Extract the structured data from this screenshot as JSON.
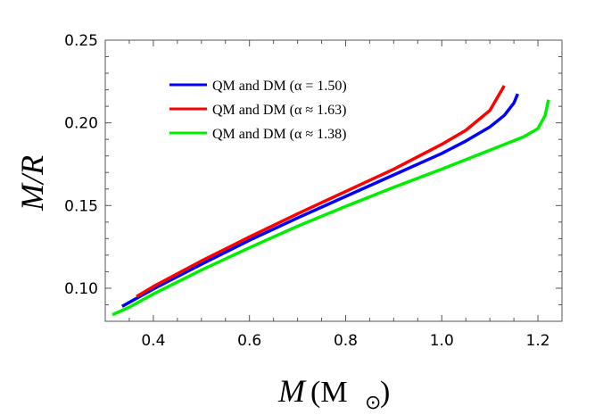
{
  "chart_data": {
    "type": "line",
    "xlabel": "M",
    "xlabel_unit": "(M",
    "xlabel_unit_sub": "⊙",
    "xlabel_unit_close": ")",
    "ylabel": "M/R",
    "xlim": [
      0.3,
      1.25
    ],
    "ylim": [
      0.08,
      0.25
    ],
    "xticks": [
      "0.4",
      "0.6",
      "0.8",
      "1.0",
      "1.2"
    ],
    "yticks": [
      "0.10",
      "0.15",
      "0.20",
      "0.25"
    ],
    "legend_position": "upper-left",
    "series": [
      {
        "name": "QM and DM (α = 1.50)",
        "color": "#0000ff",
        "x": [
          0.335,
          0.4,
          0.5,
          0.6,
          0.7,
          0.8,
          0.9,
          1.0,
          1.05,
          1.1,
          1.13,
          1.15,
          1.158
        ],
        "y": [
          0.089,
          0.0995,
          0.1145,
          0.129,
          0.1425,
          0.1555,
          0.1685,
          0.1815,
          0.189,
          0.1975,
          0.2045,
          0.212,
          0.2175
        ]
      },
      {
        "name": "QM and DM (α ≈ 1.63)",
        "color": "#ff0000",
        "x": [
          0.365,
          0.4,
          0.5,
          0.6,
          0.7,
          0.8,
          0.9,
          1.0,
          1.05,
          1.1,
          1.13
        ],
        "y": [
          0.095,
          0.101,
          0.1165,
          0.131,
          0.145,
          0.1585,
          0.172,
          0.187,
          0.1955,
          0.2075,
          0.2225
        ]
      },
      {
        "name": "QM and DM (α ≈ 1.38)",
        "color": "#00ee00",
        "x": [
          0.315,
          0.35,
          0.4,
          0.5,
          0.6,
          0.7,
          0.8,
          0.9,
          1.0,
          1.1,
          1.17,
          1.2,
          1.215,
          1.222
        ],
        "y": [
          0.084,
          0.0885,
          0.0965,
          0.111,
          0.1245,
          0.1375,
          0.1495,
          0.161,
          0.172,
          0.1835,
          0.1915,
          0.1965,
          0.2045,
          0.214
        ]
      }
    ]
  }
}
